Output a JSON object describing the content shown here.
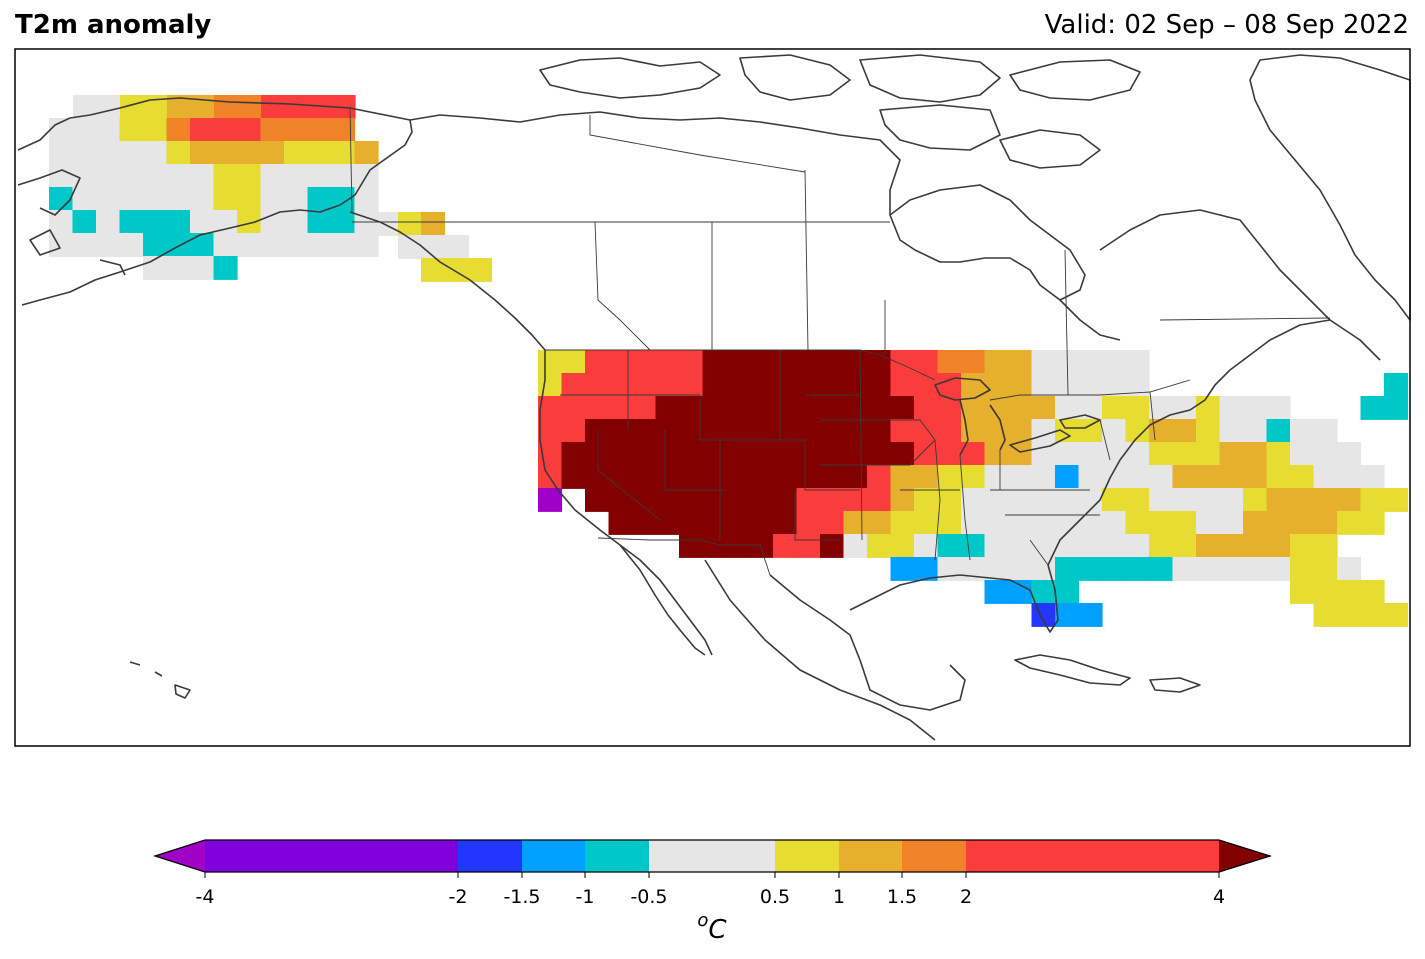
{
  "title": "T2m anomaly",
  "valid": "Valid: 02 Sep – 08 Sep 2022",
  "colorbar": {
    "unit_base": "o",
    "unit": "C",
    "ticks": [
      "-4",
      "-2",
      "-1.5",
      "-1",
      "-0.5",
      "0.5",
      "1",
      "1.5",
      "2",
      "4"
    ],
    "tick_values": [
      -4,
      -2,
      -1.5,
      -1,
      -0.5,
      0.5,
      1,
      1.5,
      2,
      4
    ],
    "extend": "both",
    "bins": [
      {
        "from": -4,
        "to": -2,
        "color": "#8000dc"
      },
      {
        "from": -2,
        "to": -1.5,
        "color": "#2236ff"
      },
      {
        "from": -1.5,
        "to": -1,
        "color": "#00a0ff"
      },
      {
        "from": -1,
        "to": -0.5,
        "color": "#00c8c8"
      },
      {
        "from": -0.5,
        "to": 0.5,
        "color": "#e6e6e6"
      },
      {
        "from": 0.5,
        "to": 1,
        "color": "#e6dc32"
      },
      {
        "from": 1,
        "to": 1.5,
        "color": "#e6af2d"
      },
      {
        "from": 1.5,
        "to": 2,
        "color": "#f08228"
      },
      {
        "from": 2,
        "to": 4,
        "color": "#fa3c3c"
      }
    ],
    "under_color": "#a000c8",
    "over_color": "#820000"
  },
  "regions": [
    {
      "name": "Alaska",
      "anomaly": "mostly +0.5 to +4, near-normal west, -1 to -0.5 southwest coast"
    },
    {
      "name": "Western & Central US",
      "anomaly": "> +4 (dark red) over Great Basin / Rockies / High Plains"
    },
    {
      "name": "Eastern US",
      "anomaly": "+0.5 to +2"
    },
    {
      "name": "Gulf Coast / Texas",
      "anomaly": "-2 to -0.5"
    }
  ]
}
